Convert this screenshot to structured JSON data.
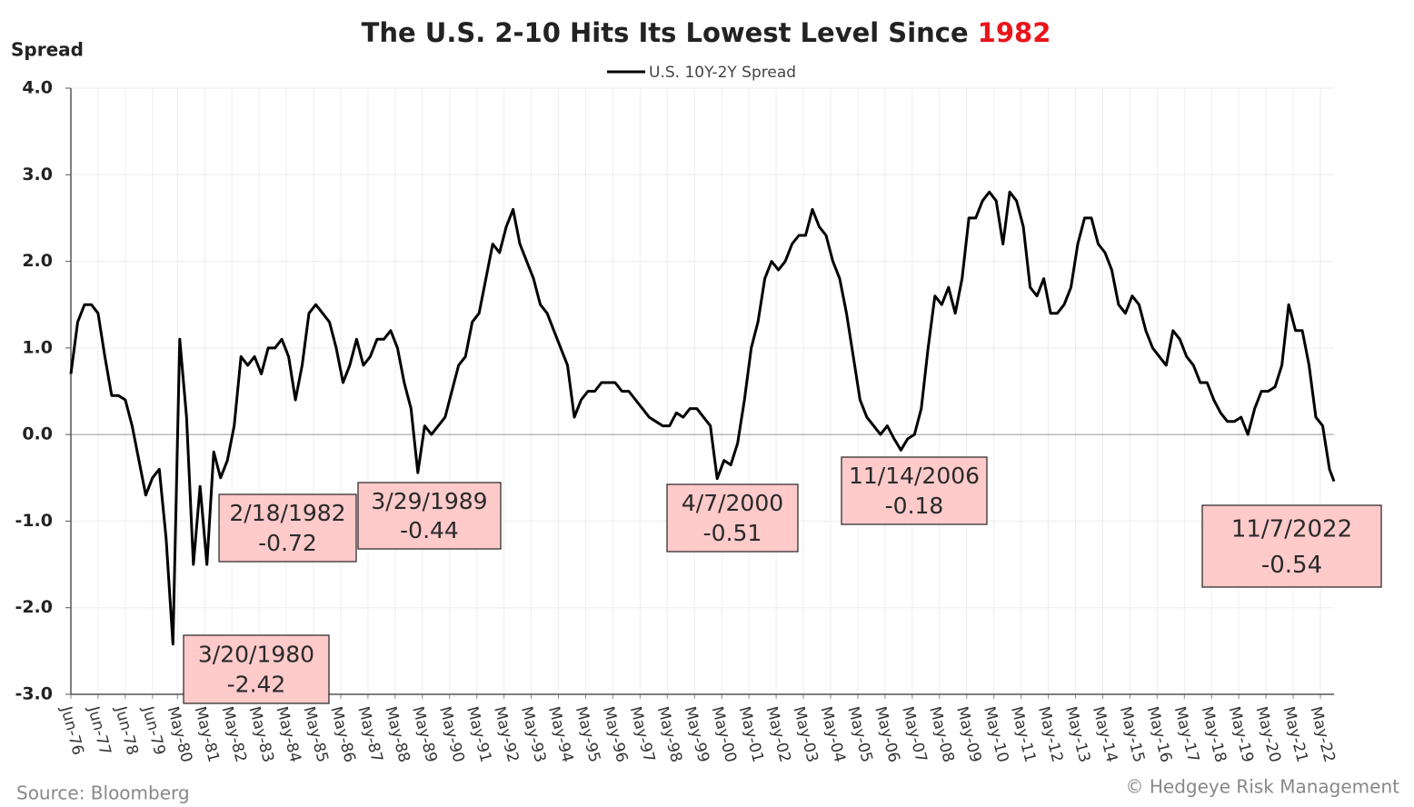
{
  "chart_data": {
    "type": "line",
    "title": "The U.S. 2-10 Hits Its Lowest Level Since",
    "title_highlight": "1982",
    "y_label": "Spread",
    "source": "Source: Bloomberg",
    "credit": "© Hedgeye Risk Management",
    "x": [
      "Jun-76",
      "Sep-76",
      "Dec-76",
      "Mar-77",
      "Jun-77",
      "Sep-77",
      "Dec-77",
      "Mar-78",
      "Jun-78",
      "Sep-78",
      "Dec-78",
      "Mar-79",
      "Jun-79",
      "Sep-79",
      "Dec-79",
      "Mar-80",
      "Jun-80",
      "Sep-80",
      "Dec-80",
      "Mar-81",
      "Jun-81",
      "Sep-81",
      "Dec-81",
      "Mar-82",
      "Jun-82",
      "Sep-82",
      "Dec-82",
      "Mar-83",
      "Jun-83",
      "Sep-83",
      "Dec-83",
      "Mar-84",
      "Jun-84",
      "Sep-84",
      "Dec-84",
      "Mar-85",
      "Jun-85",
      "Sep-85",
      "Dec-85",
      "Mar-86",
      "Jun-86",
      "Sep-86",
      "Dec-86",
      "Mar-87",
      "Jun-87",
      "Sep-87",
      "Dec-87",
      "Mar-88",
      "Jun-88",
      "Sep-88",
      "Dec-88",
      "Mar-89",
      "Jun-89",
      "Sep-89",
      "Dec-89",
      "Mar-90",
      "Jun-90",
      "Sep-90",
      "Dec-90",
      "Mar-91",
      "Jun-91",
      "Sep-91",
      "Dec-91",
      "Mar-92",
      "Jun-92",
      "Sep-92",
      "Dec-92",
      "Mar-93",
      "Jun-93",
      "Sep-93",
      "Dec-93",
      "Mar-94",
      "Jun-94",
      "Sep-94",
      "Dec-94",
      "Mar-95",
      "Jun-95",
      "Sep-95",
      "Dec-95",
      "Mar-96",
      "Jun-96",
      "Sep-96",
      "Dec-96",
      "Mar-97",
      "Jun-97",
      "Sep-97",
      "Dec-97",
      "Mar-98",
      "Jun-98",
      "Sep-98",
      "Dec-98",
      "Mar-99",
      "Jun-99",
      "Sep-99",
      "Dec-99",
      "Mar-00",
      "Jun-00",
      "Sep-00",
      "Dec-00",
      "Mar-01",
      "Jun-01",
      "Sep-01",
      "Dec-01",
      "Mar-02",
      "Jun-02",
      "Sep-02",
      "Dec-02",
      "Mar-03",
      "Jun-03",
      "Sep-03",
      "Dec-03",
      "Mar-04",
      "Jun-04",
      "Sep-04",
      "Dec-04",
      "Mar-05",
      "Jun-05",
      "Sep-05",
      "Dec-05",
      "Mar-06",
      "Jun-06",
      "Sep-06",
      "Dec-06",
      "Mar-07",
      "Jun-07",
      "Sep-07",
      "Dec-07",
      "Mar-08",
      "Jun-08",
      "Sep-08",
      "Dec-08",
      "Mar-09",
      "Jun-09",
      "Sep-09",
      "Dec-09",
      "Mar-10",
      "Jun-10",
      "Sep-10",
      "Dec-10",
      "Mar-11",
      "Jun-11",
      "Sep-11",
      "Dec-11",
      "Mar-12",
      "Jun-12",
      "Sep-12",
      "Dec-12",
      "Mar-13",
      "Jun-13",
      "Sep-13",
      "Dec-13",
      "Mar-14",
      "Jun-14",
      "Sep-14",
      "Dec-14",
      "Mar-15",
      "Jun-15",
      "Sep-15",
      "Dec-15",
      "Mar-16",
      "Jun-16",
      "Sep-16",
      "Dec-16",
      "Mar-17",
      "Jun-17",
      "Sep-17",
      "Dec-17",
      "Mar-18",
      "Jun-18",
      "Sep-18",
      "Dec-18",
      "Mar-19",
      "Jun-19",
      "Sep-19",
      "Dec-19",
      "Mar-20",
      "Jun-20",
      "Sep-20",
      "Dec-20",
      "Mar-21",
      "Jun-21",
      "Sep-21",
      "Dec-21",
      "Mar-22",
      "Jun-22",
      "Sep-22",
      "Nov-22"
    ],
    "series": [
      {
        "name": "U.S. 10Y-2Y Spread",
        "color": "#000000",
        "values": [
          0.7,
          1.3,
          1.5,
          1.5,
          1.4,
          0.9,
          0.45,
          0.45,
          0.4,
          0.1,
          -0.3,
          -0.7,
          -0.5,
          -0.4,
          -1.2,
          -2.42,
          1.1,
          0.2,
          -1.5,
          -0.6,
          -1.5,
          -0.2,
          -0.5,
          -0.3,
          0.1,
          0.9,
          0.8,
          0.9,
          0.7,
          1.0,
          1.0,
          1.1,
          0.9,
          0.4,
          0.8,
          1.4,
          1.5,
          1.4,
          1.3,
          1.0,
          0.6,
          0.8,
          1.1,
          0.8,
          0.9,
          1.1,
          1.1,
          1.2,
          1.0,
          0.6,
          0.3,
          -0.44,
          0.1,
          0.0,
          0.1,
          0.2,
          0.5,
          0.8,
          0.9,
          1.3,
          1.4,
          1.8,
          2.2,
          2.1,
          2.4,
          2.6,
          2.2,
          2.0,
          1.8,
          1.5,
          1.4,
          1.2,
          1.0,
          0.8,
          0.2,
          0.4,
          0.5,
          0.5,
          0.6,
          0.6,
          0.6,
          0.5,
          0.5,
          0.4,
          0.3,
          0.2,
          0.15,
          0.1,
          0.1,
          0.25,
          0.2,
          0.3,
          0.3,
          0.2,
          0.1,
          -0.51,
          -0.3,
          -0.35,
          -0.1,
          0.4,
          1.0,
          1.3,
          1.8,
          2.0,
          1.9,
          2.0,
          2.2,
          2.3,
          2.3,
          2.6,
          2.4,
          2.3,
          2.0,
          1.8,
          1.4,
          0.9,
          0.4,
          0.2,
          0.1,
          0.0,
          0.1,
          -0.05,
          -0.18,
          -0.05,
          0.0,
          0.3,
          1.0,
          1.6,
          1.5,
          1.7,
          1.4,
          1.8,
          2.5,
          2.5,
          2.7,
          2.8,
          2.7,
          2.2,
          2.8,
          2.7,
          2.4,
          1.7,
          1.6,
          1.8,
          1.4,
          1.4,
          1.5,
          1.7,
          2.2,
          2.5,
          2.5,
          2.2,
          2.1,
          1.9,
          1.5,
          1.4,
          1.6,
          1.5,
          1.2,
          1.0,
          0.9,
          0.8,
          1.2,
          1.1,
          0.9,
          0.8,
          0.6,
          0.6,
          0.4,
          0.25,
          0.15,
          0.15,
          0.2,
          0.0,
          0.3,
          0.5,
          0.5,
          0.55,
          0.8,
          1.5,
          1.2,
          1.2,
          0.8,
          0.2,
          0.1,
          -0.4,
          -0.54
        ]
      }
    ],
    "xlim": [
      "Jun-76",
      "Nov-22"
    ],
    "xticks": [
      "Jun-76",
      "Jun-77",
      "Jun-78",
      "Jun-79",
      "May-80",
      "May-81",
      "May-82",
      "May-83",
      "May-84",
      "May-85",
      "May-86",
      "May-87",
      "May-88",
      "May-89",
      "May-90",
      "May-91",
      "May-92",
      "May-93",
      "May-94",
      "May-95",
      "May-96",
      "May-97",
      "May-98",
      "May-99",
      "May-00",
      "May-01",
      "May-02",
      "May-03",
      "May-04",
      "May-05",
      "May-06",
      "May-07",
      "May-08",
      "May-09",
      "May-10",
      "May-11",
      "May-12",
      "May-13",
      "May-14",
      "May-15",
      "May-16",
      "May-17",
      "May-18",
      "May-19",
      "May-20",
      "May-21",
      "May-22"
    ],
    "ylim": [
      -3,
      4
    ],
    "yticks": [
      {
        "value": 4,
        "label": "4.0"
      },
      {
        "value": 3,
        "label": "3.0"
      },
      {
        "value": 2,
        "label": "2.0"
      },
      {
        "value": 1,
        "label": "1.0"
      },
      {
        "value": 0,
        "label": "0.0"
      },
      {
        "value": -1,
        "label": "-1.0"
      },
      {
        "value": -2,
        "label": "-2.0"
      },
      {
        "value": -3,
        "label": "-3.0"
      }
    ],
    "grid": true,
    "annotations": [
      {
        "label": "3/20/1980",
        "value": -2.42
      },
      {
        "label": "2/18/1982",
        "value": -0.72
      },
      {
        "label": "3/29/1989",
        "value": -0.44
      },
      {
        "label": "4/7/2000",
        "value": -0.51
      },
      {
        "label": "11/14/2006",
        "value": -0.18
      },
      {
        "label": "11/7/2022",
        "value": -0.54
      }
    ]
  }
}
